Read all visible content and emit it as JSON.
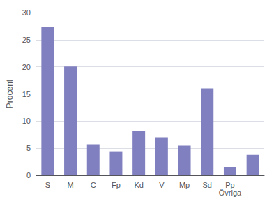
{
  "chart_data": {
    "type": "bar",
    "categories": [
      "S",
      "M",
      "C",
      "Fp",
      "Kd",
      "V",
      "Mp",
      "Sd",
      "Pp\nÖvriga",
      null
    ],
    "values": [
      27.34,
      20.05,
      5.73,
      4.43,
      8.2,
      7.03,
      5.47,
      16.02,
      1.56,
      3.78
    ],
    "color": "#8080c0",
    "ylabel": "Procent",
    "ylim": [
      0,
      30
    ],
    "yticks": [
      0,
      5,
      10,
      15,
      20,
      25,
      30
    ],
    "grid": true
  }
}
